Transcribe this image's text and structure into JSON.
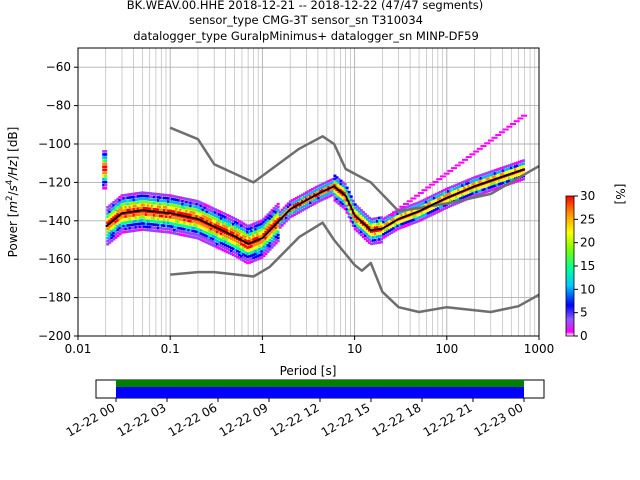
{
  "title_lines": [
    "BK.WEAV.00.HHE   2018-12-21 -- 2018-12-22  (47/47 segments)",
    "sensor_type CMG-3T sensor_sn T310034",
    "datalogger_type GuralpMinimus+ datalogger_sn MINP-DF59"
  ],
  "colorbar": {
    "label": "[%]",
    "ticks": [
      "0",
      "5",
      "10",
      "15",
      "20",
      "25",
      "30"
    ]
  },
  "timeline": {
    "ticks": [
      "12-22 00",
      "12-22 03",
      "12-22 06",
      "12-22 09",
      "12-22 12",
      "12-22 15",
      "12-22 18",
      "12-22 21",
      "12-23 00"
    ],
    "colors": {
      "available": "#0000ff",
      "used": "#008000"
    }
  },
  "chart_data": {
    "type": "line",
    "xlabel": "Period [s]",
    "ylabel_parts": [
      "Power [",
      "m",
      "2",
      "/",
      "s",
      "4",
      "/Hz",
      "] [dB]"
    ],
    "x_scale": "log",
    "xlim": [
      0.01,
      1000
    ],
    "ylim": [
      -200,
      -50
    ],
    "xticks": [
      {
        "v": 0.01,
        "label": "0.01"
      },
      {
        "v": 0.1,
        "label": "0.1"
      },
      {
        "v": 1,
        "label": "1"
      },
      {
        "v": 10,
        "label": "10"
      },
      {
        "v": 100,
        "label": "100"
      },
      {
        "v": 1000,
        "label": "1000"
      }
    ],
    "yticks": [
      {
        "v": -60,
        "label": "−60"
      },
      {
        "v": -80,
        "label": "−80"
      },
      {
        "v": -100,
        "label": "−100"
      },
      {
        "v": -120,
        "label": "−120"
      },
      {
        "v": -140,
        "label": "−140"
      },
      {
        "v": -160,
        "label": "−160"
      },
      {
        "v": -180,
        "label": "−180"
      },
      {
        "v": -200,
        "label": "−200"
      }
    ],
    "grid": true,
    "series": [
      {
        "color": "#6e6e6e",
        "x": [
          0.1,
          0.2,
          0.3,
          0.8,
          2.5,
          4.5,
          6,
          8,
          15,
          30,
          100,
          300,
          1000
        ],
        "y": [
          -91.5,
          -97.5,
          -110.5,
          -120,
          -102.5,
          -96,
          -100,
          -113,
          -120,
          -135,
          -131,
          -126,
          -111.5
        ]
      },
      {
        "color": "#6e6e6e",
        "x": [
          0.1,
          0.2,
          0.3,
          0.8,
          1.2,
          2.5,
          4.5,
          6,
          10,
          12,
          15,
          20,
          30,
          50,
          100,
          300,
          600,
          1000
        ],
        "y": [
          -168,
          -166.7,
          -166.7,
          -169,
          -164,
          -148.5,
          -141,
          -150,
          -163,
          -166,
          -162,
          -177,
          -185,
          -187.5,
          -185,
          -187.5,
          -184.5,
          -178.5
        ]
      },
      {
        "color": "#000000",
        "x": [
          0.02,
          0.03,
          0.05,
          0.1,
          0.2,
          0.3,
          0.5,
          0.7,
          1,
          2,
          4,
          6,
          8,
          10,
          15,
          20,
          30,
          50,
          100,
          200,
          400,
          700
        ],
        "y": [
          -143,
          -136,
          -134.5,
          -136,
          -139,
          -143,
          -148,
          -152,
          -149,
          -134,
          -126,
          -122,
          -127,
          -137,
          -145,
          -144,
          -139,
          -135,
          -128,
          -122,
          -117,
          -113
        ]
      }
    ]
  }
}
